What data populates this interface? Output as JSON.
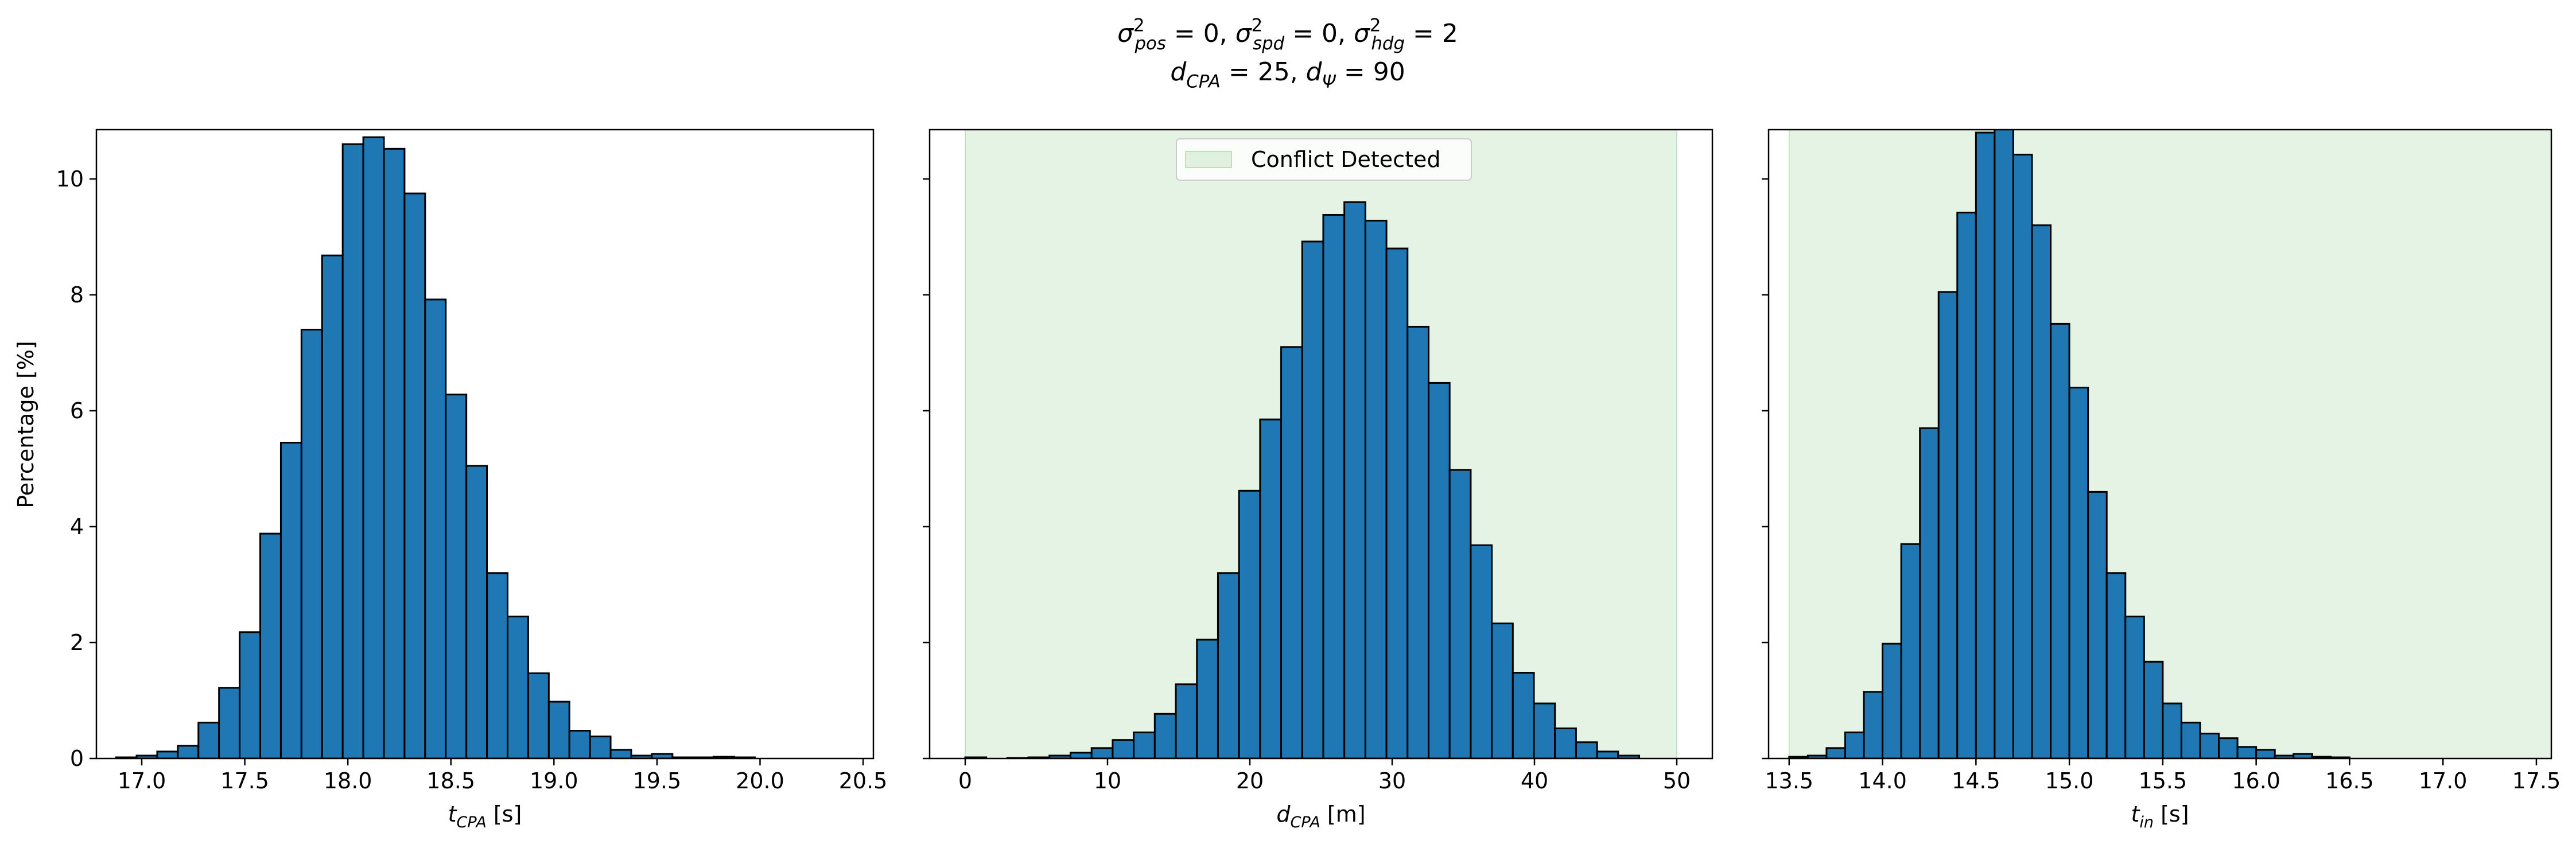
{
  "figure": {
    "title_line1_parts": [
      {
        "base": "σ",
        "sup": "2",
        "sub": "pos",
        "rest": " = 0, "
      },
      {
        "base": "σ",
        "sup": "2",
        "sub": "spd",
        "rest": " = 0, "
      },
      {
        "base": "σ",
        "sup": "2",
        "sub": "hdg",
        "rest": " = 2"
      }
    ],
    "title_line2_parts": [
      {
        "base": "d",
        "sub": "CPA",
        "rest": " = 25, "
      },
      {
        "base": "d",
        "sub": "Ψ",
        "rest": " = 90"
      }
    ],
    "ylabel": "Percentage [%]"
  },
  "colors": {
    "bar_fill": "#1f77b4",
    "bar_edge": "#000000",
    "conflict_fill": "#2ca02c"
  },
  "chart_data": [
    {
      "type": "bar",
      "name": "tcpa-histogram",
      "xlabel_base": "t",
      "xlabel_sub": "CPA",
      "xlabel_unit": " [s]",
      "xlim": [
        16.78,
        20.55
      ],
      "ylim": [
        0,
        10.85
      ],
      "xticks": [
        17.0,
        17.5,
        18.0,
        18.5,
        19.0,
        19.5,
        20.0,
        20.5
      ],
      "xtick_labels": [
        "17.0",
        "17.5",
        "18.0",
        "18.5",
        "19.0",
        "19.5",
        "20.0",
        "20.5"
      ],
      "yticks": [
        0,
        2,
        4,
        6,
        8,
        10
      ],
      "ytick_labels": [
        "0",
        "2",
        "4",
        "6",
        "8",
        "10"
      ],
      "show_ytick_labels": true,
      "bin_start": 16.875,
      "bin_width": 0.1,
      "values": [
        0.02,
        0.05,
        0.12,
        0.22,
        0.62,
        1.22,
        2.18,
        3.88,
        5.45,
        7.4,
        8.68,
        10.6,
        10.72,
        10.52,
        9.75,
        7.92,
        6.28,
        5.05,
        3.2,
        2.45,
        1.47,
        0.98,
        0.48,
        0.38,
        0.15,
        0.05,
        0.08,
        0.02,
        0.02,
        0.03,
        0.02
      ],
      "grid": false,
      "legend": null,
      "conflict_span": null
    },
    {
      "type": "bar",
      "name": "dcpa-histogram",
      "xlabel_base": "d",
      "xlabel_sub": "CPA",
      "xlabel_unit": " [m]",
      "xlim": [
        -2.5,
        52.5
      ],
      "ylim": [
        0,
        10.85
      ],
      "xticks": [
        0,
        10,
        20,
        30,
        40,
        50
      ],
      "xtick_labels": [
        "0",
        "10",
        "20",
        "30",
        "40",
        "50"
      ],
      "yticks": [
        0,
        2,
        4,
        6,
        8,
        10
      ],
      "ytick_labels": [
        "0",
        "2",
        "4",
        "6",
        "8",
        "10"
      ],
      "show_ytick_labels": false,
      "bin_start": 0,
      "bin_width": 1.48,
      "values": [
        0.02,
        0.0,
        0.01,
        0.02,
        0.05,
        0.1,
        0.18,
        0.32,
        0.45,
        0.77,
        1.28,
        2.05,
        3.2,
        4.62,
        5.85,
        7.1,
        8.92,
        9.38,
        9.6,
        9.28,
        8.8,
        7.45,
        6.48,
        4.98,
        3.68,
        2.33,
        1.48,
        0.95,
        0.52,
        0.28,
        0.12,
        0.05
      ],
      "grid": false,
      "legend": {
        "label": "Conflict Detected",
        "placement": "upper center"
      },
      "conflict_span": [
        0,
        50
      ]
    },
    {
      "type": "bar",
      "name": "tin-histogram",
      "xlabel_base": "t",
      "xlabel_sub": "in",
      "xlabel_unit": " [s]",
      "xlim": [
        13.39,
        17.58
      ],
      "ylim": [
        0,
        10.85
      ],
      "xticks": [
        13.5,
        14.0,
        14.5,
        15.0,
        15.5,
        16.0,
        16.5,
        17.0,
        17.5
      ],
      "xtick_labels": [
        "13.5",
        "14.0",
        "14.5",
        "15.0",
        "15.5",
        "16.0",
        "16.5",
        "17.0",
        "17.5"
      ],
      "yticks": [
        0,
        2,
        4,
        6,
        8,
        10
      ],
      "ytick_labels": [
        "0",
        "2",
        "4",
        "6",
        "8",
        "10"
      ],
      "show_ytick_labels": false,
      "bin_start": 13.5,
      "bin_width": 0.1,
      "values": [
        0.03,
        0.05,
        0.18,
        0.45,
        1.15,
        1.98,
        3.7,
        5.7,
        8.05,
        9.42,
        10.8,
        10.95,
        10.42,
        9.2,
        7.5,
        6.4,
        4.6,
        3.2,
        2.45,
        1.67,
        0.95,
        0.62,
        0.43,
        0.35,
        0.2,
        0.15,
        0.05,
        0.08,
        0.03,
        0.02
      ],
      "grid": false,
      "legend": null,
      "conflict_span": [
        13.5,
        17.58
      ]
    }
  ]
}
